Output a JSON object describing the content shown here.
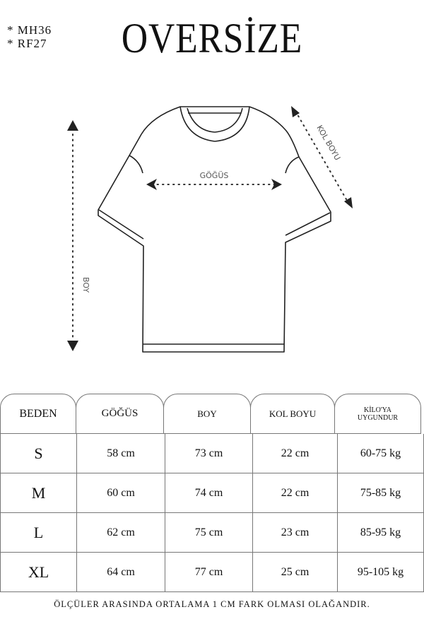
{
  "codes": [
    "* MH36",
    "* RF27"
  ],
  "title": "OVERSİZE",
  "diagram": {
    "chest_label": "GÖĞÜS",
    "sleeve_label": "KOL BOYU",
    "length_label": "BOY"
  },
  "table": {
    "headers": [
      "BEDEN",
      "GÖĞÜS",
      "BOY",
      "KOL BOYU",
      "KİLO'YA",
      "UYGUNDUR"
    ],
    "rows": [
      [
        "S",
        "58 cm",
        "73 cm",
        "22  cm",
        "60-75 kg"
      ],
      [
        "M",
        "60 cm",
        "74 cm",
        "22 cm",
        "75-85 kg"
      ],
      [
        "L",
        "62 cm",
        "75 cm",
        "23 cm",
        "85-95 kg"
      ],
      [
        "XL",
        "64 cm",
        "77 cm",
        "25 cm",
        "95-105 kg"
      ]
    ]
  },
  "note": "ÖLÇÜLER ARASINDA ORTALAMA 1 CM FARK OLMASI OLAĞANDIR."
}
